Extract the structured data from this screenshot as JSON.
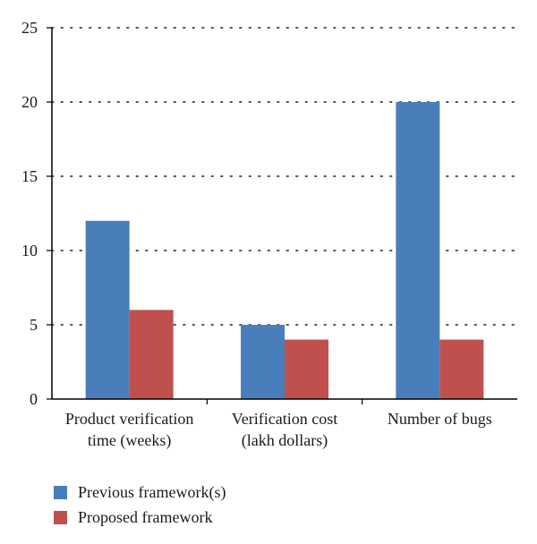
{
  "chart_data": {
    "type": "bar",
    "categories": [
      [
        "Product verification",
        "time (weeks)"
      ],
      [
        "Verification cost",
        "(lakh dollars)"
      ],
      [
        "Number of bugs"
      ]
    ],
    "series": [
      {
        "name": "Previous framework(s)",
        "values": [
          12,
          5,
          20
        ],
        "color": "#4a7ebb"
      },
      {
        "name": "Proposed framework",
        "values": [
          6,
          4,
          4
        ],
        "color": "#c0504d"
      }
    ],
    "ylim": [
      0,
      25
    ],
    "yticks": [
      0,
      5,
      10,
      15,
      20,
      25
    ],
    "grid": true,
    "legend_position": "bottom-left"
  }
}
